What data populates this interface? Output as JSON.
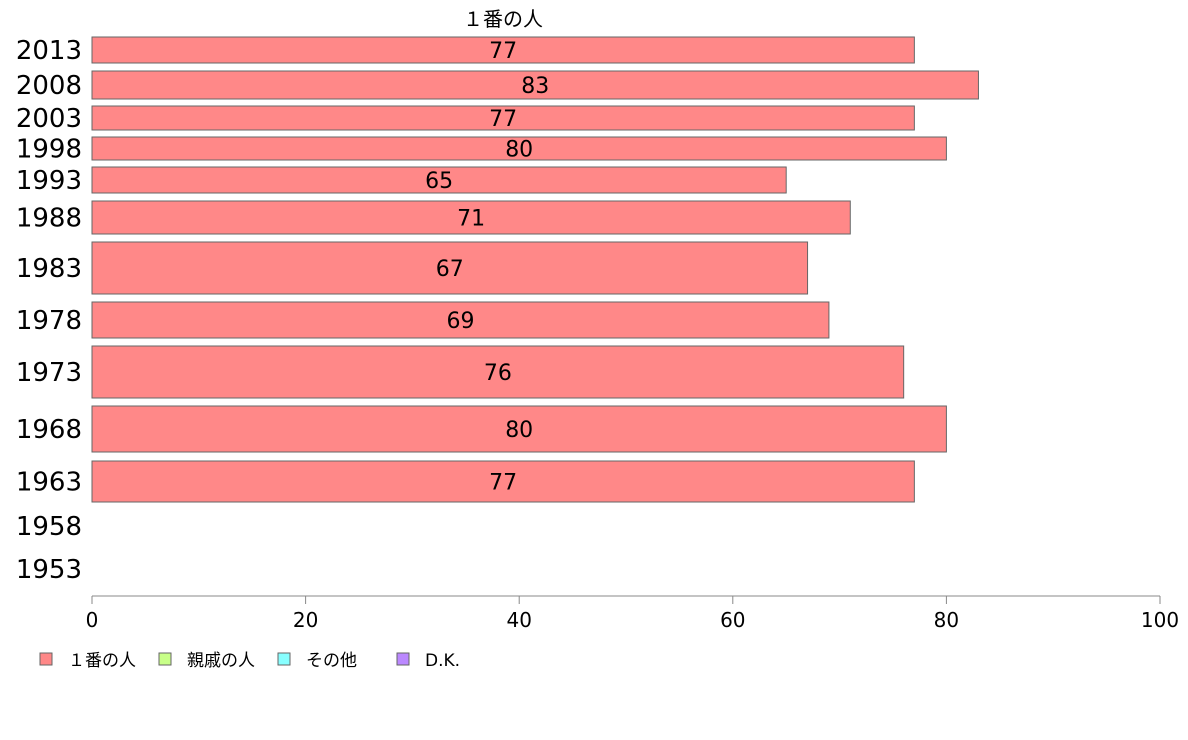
{
  "chart_data": {
    "type": "bar",
    "orientation": "horizontal",
    "title": "１番の人",
    "categories": [
      "2013",
      "2008",
      "2003",
      "1998",
      "1993",
      "1988",
      "1983",
      "1978",
      "1973",
      "1968",
      "1963",
      "1958",
      "1953"
    ],
    "series": [
      {
        "name": "１番の人",
        "color": "#ff8888",
        "values": [
          77,
          83,
          77,
          80,
          65,
          71,
          67,
          69,
          76,
          80,
          77,
          null,
          null
        ]
      }
    ],
    "xlim": [
      0,
      100
    ],
    "xticks": [
      0,
      20,
      40,
      60,
      80,
      100
    ],
    "grid": false,
    "legend_position": "bottom-left"
  },
  "legend": {
    "items": [
      {
        "label": "１番の人",
        "color": "#ff8888"
      },
      {
        "label": "親戚の人",
        "color": "#c8ff88"
      },
      {
        "label": "その他",
        "color": "#88ffff"
      },
      {
        "label": "D.K.",
        "color": "#bb88ff"
      }
    ]
  }
}
